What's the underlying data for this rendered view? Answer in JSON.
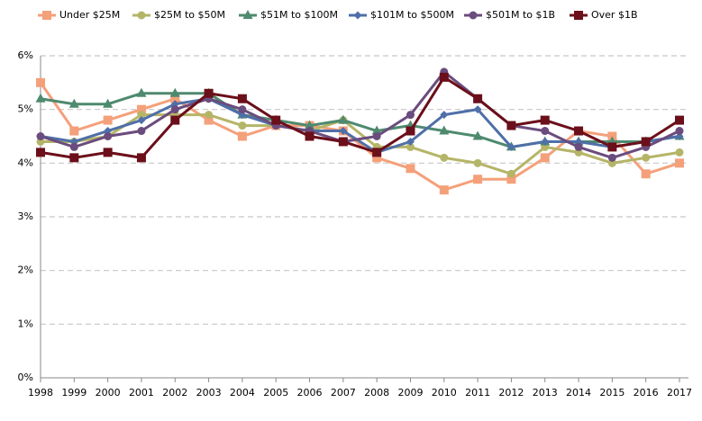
{
  "chart_data": {
    "type": "line",
    "categories": [
      "1998",
      "1999",
      "2000",
      "2001",
      "2002",
      "2003",
      "2004",
      "2005",
      "2006",
      "2007",
      "2008",
      "2009",
      "2010",
      "2011",
      "2012",
      "2013",
      "2014",
      "2015",
      "2016",
      "2017"
    ],
    "series": [
      {
        "name": "Under $25M",
        "color": "#f4a07a",
        "marker": "square",
        "values": [
          5.5,
          4.6,
          4.8,
          5.0,
          5.2,
          4.8,
          4.5,
          4.7,
          4.7,
          4.6,
          4.1,
          3.9,
          3.5,
          3.7,
          3.7,
          4.1,
          4.6,
          4.5,
          3.8,
          4.0
        ]
      },
      {
        "name": "$25M to $50M",
        "color": "#b5b568",
        "marker": "circle",
        "values": [
          4.4,
          4.4,
          4.5,
          4.9,
          4.9,
          4.9,
          4.7,
          4.7,
          4.6,
          4.8,
          4.3,
          4.3,
          4.1,
          4.0,
          3.8,
          4.3,
          4.2,
          4.0,
          4.1,
          4.2
        ]
      },
      {
        "name": "$51M to $100M",
        "color": "#4e8a6e",
        "marker": "triangle",
        "values": [
          5.2,
          5.1,
          5.1,
          5.3,
          5.3,
          5.3,
          4.9,
          4.8,
          4.7,
          4.8,
          4.6,
          4.7,
          4.6,
          4.5,
          4.3,
          4.4,
          4.4,
          4.4,
          4.4,
          4.5
        ]
      },
      {
        "name": "$101M to $500M",
        "color": "#4f6fa8",
        "marker": "diamond",
        "values": [
          4.5,
          4.4,
          4.6,
          4.8,
          5.1,
          5.2,
          4.9,
          4.7,
          4.6,
          4.6,
          4.2,
          4.4,
          4.9,
          5.0,
          4.3,
          4.4,
          4.4,
          4.3,
          4.4,
          4.5
        ]
      },
      {
        "name": "$501M to $1B",
        "color": "#6b4c7e",
        "marker": "circle",
        "values": [
          4.5,
          4.3,
          4.5,
          4.6,
          5.0,
          5.2,
          5.0,
          4.7,
          4.6,
          4.4,
          4.5,
          4.9,
          5.7,
          5.2,
          4.7,
          4.6,
          4.3,
          4.1,
          4.3,
          4.6
        ]
      },
      {
        "name": "Over $1B",
        "color": "#6b0f1a",
        "marker": "square",
        "values": [
          4.2,
          4.1,
          4.2,
          4.1,
          4.8,
          5.3,
          5.2,
          4.8,
          4.5,
          4.4,
          4.2,
          4.6,
          5.6,
          5.2,
          4.7,
          4.8,
          4.6,
          4.3,
          4.4,
          4.8
        ]
      }
    ],
    "ylim": [
      0,
      6
    ],
    "yticks": [
      {
        "value": 0,
        "label": "0%"
      },
      {
        "value": 1,
        "label": "1%"
      },
      {
        "value": 2,
        "label": "2%"
      },
      {
        "value": 3,
        "label": "3%"
      },
      {
        "value": 4,
        "label": "4%"
      },
      {
        "value": 5,
        "label": "5%"
      },
      {
        "value": 6,
        "label": "6%"
      }
    ],
    "grid": true,
    "legend": "top"
  }
}
